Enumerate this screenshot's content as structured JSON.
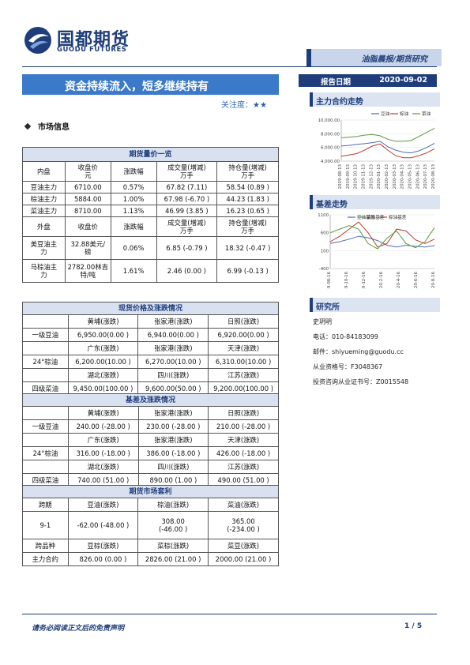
{
  "header": {
    "logo_cn": "国都期货",
    "logo_en": "GUODU FUTURES",
    "tag": "油脂晨报/期货研究",
    "title": "资金持续流入，短多继续持有",
    "date_label": "报告日期",
    "date": "2020-09-02",
    "attention_label": "关注度：",
    "attention_stars": "★★"
  },
  "section_market": "市场信息",
  "futures_table": {
    "title": "期货量价一览",
    "domestic_headers": [
      "内盘",
      "收盘价元",
      "涨跌幅",
      "成交量(增减)万手",
      "持仓量(增减)万手"
    ],
    "domestic_rows": [
      [
        "豆油主力",
        "6710.00",
        "0.57%",
        "67.82 (7.11)",
        "58.54 (0.89 )"
      ],
      [
        "棕油主力",
        "5884.00",
        "1.00%",
        "67.98 (-6.70 )",
        "44.23 (1.83 )"
      ],
      [
        "菜油主力",
        "8710.00",
        "1.13%",
        "46.99 (3.85 )",
        "16.23 (0.65 )"
      ]
    ],
    "foreign_headers": [
      "外盘",
      "收盘价",
      "涨跌幅",
      "成交量(增减)万手",
      "持仓量(增减)万手"
    ],
    "foreign_rows": [
      [
        "美豆油主力",
        "32.88美元/磅",
        "0.06%",
        "6.85 (-0.79 )",
        "18.32 (-0.47 )"
      ],
      [
        "马棕油主力",
        "2782.00林吉特/吨",
        "1.61%",
        "2.46 (0.00 )",
        "6.99 (-0.13 )"
      ]
    ]
  },
  "spot_table": {
    "title": "现货价格及涨跌情况",
    "rows": [
      {
        "name": "",
        "cells": [
          "黄埔(涨跌)",
          "张家港(涨跌)",
          "日照(涨跌)"
        ]
      },
      {
        "name": "一级豆油",
        "cells": [
          "6,950.00(0.00 )",
          "6,940.00(0.00 )",
          "6,920.00(0.00 )"
        ]
      },
      {
        "name": "",
        "cells": [
          "广东(涨跌)",
          "张家港(涨跌)",
          "天津(涨跌)"
        ]
      },
      {
        "name": "24°棕油",
        "cells": [
          "6,200.00(10.00 )",
          "6,270.00(10.00 )",
          "6,310.00(10.00 )"
        ]
      },
      {
        "name": "",
        "cells": [
          "湖北(涨跌)",
          "四川(涨跌)",
          "江苏(涨跌)"
        ]
      },
      {
        "name": "四级菜油",
        "cells": [
          "9,450.00(100.00 )",
          "9,600.00(50.00 )",
          "9,200.00(100.00 )"
        ]
      }
    ]
  },
  "basis_table": {
    "title": "基差及涨跌情况",
    "rows": [
      {
        "name": "",
        "cells": [
          "黄埔(涨跌)",
          "张家港(涨跌)",
          "日照(涨跌)"
        ]
      },
      {
        "name": "一级豆油",
        "cells": [
          "240.00 (-28.00 )",
          "230.00 (-28.00 )",
          "210.00 (-28.00 )"
        ]
      },
      {
        "name": "",
        "cells": [
          "广东(涨跌)",
          "张家港(涨跌)",
          "天津(涨跌)"
        ]
      },
      {
        "name": "24°棕油",
        "cells": [
          "316.00 (-18.00 )",
          "386.00 (-18.00 )",
          "426.00 (-18.00 )"
        ]
      },
      {
        "name": "",
        "cells": [
          "湖北(涨跌)",
          "四川(涨跌)",
          "江苏(涨跌)"
        ]
      },
      {
        "name": "四级菜油",
        "cells": [
          "740.00 (51.00 )",
          "890.00 (1.00 )",
          "490.00 (51.00 )"
        ]
      }
    ]
  },
  "arb_table": {
    "title": "期货市场套利",
    "rows": [
      [
        "跨期",
        "豆油(涨跌)",
        "棕油(涨跌)",
        "菜油(涨跌)"
      ],
      [
        "9-1",
        "-62.00 (-48.00 )",
        "308.00 (-46.00 )",
        "365.00 (-234.00 )"
      ],
      [
        "跨品种",
        "豆棕(涨跌)",
        "菜棕(涨跌)",
        "菜豆(涨跌)"
      ],
      [
        "主力合约",
        "826.00 (0.00 )",
        "2826.00 (21.00 )",
        "2000.00 (21.00 )"
      ]
    ]
  },
  "sidebar": {
    "chart1_title": "主力合约走势",
    "chart2_title": "基差走势",
    "research_title": "研究所",
    "analyst": "史玥明",
    "phone": "电话：010-84183099",
    "email": "邮件：shiyueming@guodu.cc",
    "cert": "从业资格号：F3048367",
    "consult": "投资咨询从业证书号：Z0015548"
  },
  "chart_data": [
    {
      "type": "line",
      "ylim": [
        4000,
        10000
      ],
      "y_ticks": [
        "10,000.00",
        "8,000.00",
        "6,000.00",
        "4,000.00"
      ],
      "x_ticks": [
        "2019-08-13",
        "2019-09-13",
        "2019-10-13",
        "2019-11-13",
        "2019-12-13",
        "2020-01-13",
        "2020-02-13",
        "2020-03-13",
        "2020-04-13",
        "2020-05-13",
        "2020-06-13",
        "2020-07-13",
        "2020-08-13"
      ],
      "series": [
        {
          "name": "豆油",
          "color": "#4a6fb5",
          "values": [
            6200,
            6300,
            6450,
            6550,
            6700,
            6900,
            6100,
            5600,
            5300,
            5200,
            5500,
            6000,
            6600
          ]
        },
        {
          "name": "棕油",
          "color": "#c0392b",
          "values": [
            4700,
            4900,
            5100,
            5600,
            6200,
            6500,
            5600,
            4800,
            4500,
            4500,
            4800,
            5200,
            5800
          ]
        },
        {
          "name": "菜油",
          "color": "#5a9a3a",
          "values": [
            7400,
            7500,
            7600,
            7800,
            7900,
            7700,
            7200,
            6900,
            6900,
            7000,
            7600,
            8200,
            8800
          ]
        }
      ]
    },
    {
      "type": "line",
      "ylim": [
        -400,
        1100
      ],
      "y_ticks": [
        "1100",
        "600",
        "100",
        "-400"
      ],
      "x_ticks": [
        "19-08-16",
        "19-10-16",
        "19-12-16",
        "20-2-16",
        "20-4-16",
        "20-6-16",
        "20-8-16"
      ],
      "series": [
        {
          "name": "豆油基差",
          "color": "#4a6fb5",
          "values": [
            300,
            350,
            420,
            500,
            460,
            380,
            250,
            200,
            250,
            220,
            200,
            240
          ]
        },
        {
          "name": "棕油基差",
          "color": "#c0392b",
          "values": [
            350,
            500,
            700,
            900,
            600,
            200,
            300,
            700,
            650,
            400,
            300,
            420
          ]
        },
        {
          "name": "菜油基差",
          "color": "#5a9a3a",
          "values": [
            600,
            700,
            800,
            700,
            300,
            150,
            450,
            650,
            300,
            180,
            350,
            740
          ]
        }
      ]
    }
  ],
  "footer": {
    "disclaimer": "请务必阅读正文后的免责声明",
    "page": "1 / 5"
  }
}
